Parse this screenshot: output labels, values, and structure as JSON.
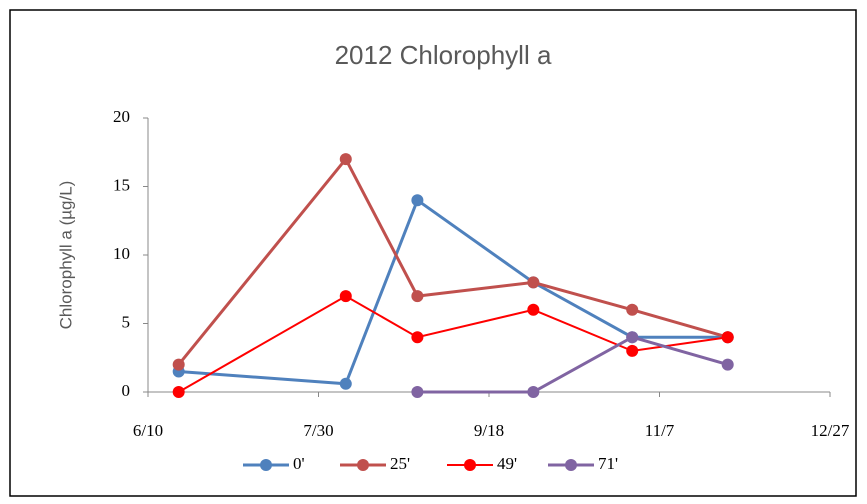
{
  "chart_data": {
    "type": "line",
    "title": "2012 Chlorophyll a",
    "ylabel": "Chlorophyll a (µg/L)",
    "x": [
      "6/19",
      "8/7",
      "8/28",
      "10/1",
      "10/30",
      "11/27"
    ],
    "series": [
      {
        "name": "0'",
        "color": "#4f81bd",
        "values": [
          1.5,
          0.6,
          14,
          8,
          4,
          4
        ]
      },
      {
        "name": "25'",
        "color": "#c0504d",
        "values": [
          2,
          17,
          7,
          8,
          6,
          4
        ]
      },
      {
        "name": "49'",
        "color": "#ff0000",
        "values": [
          0,
          7,
          4,
          6,
          3,
          4
        ]
      },
      {
        "name": "71'",
        "color": "#8064a2",
        "values": [
          null,
          null,
          0,
          0,
          4,
          2
        ]
      }
    ],
    "xlim": [
      "6/10",
      "12/27"
    ],
    "xticks": [
      "6/10",
      "7/30",
      "9/18",
      "11/7",
      "12/27"
    ],
    "ylim": [
      0,
      20
    ],
    "yticks": [
      0,
      5,
      10,
      15,
      20
    ],
    "legend": "bottom"
  }
}
